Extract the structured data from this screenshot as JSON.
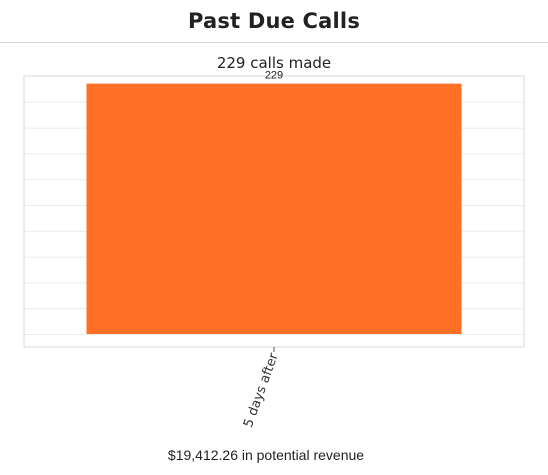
{
  "header": {
    "title": "Past Due Calls"
  },
  "subtitle": "229 calls made",
  "footer": {
    "revenue_text": "$19,412.26 in potential revenue"
  },
  "chart_data": {
    "type": "bar",
    "categories": [
      "5 days after"
    ],
    "values": [
      229
    ],
    "data_labels": [
      "229"
    ],
    "ylim": [
      0,
      236
    ],
    "grid": true,
    "bar_color": "#ff6f26",
    "xlabel": "",
    "ylabel": ""
  }
}
